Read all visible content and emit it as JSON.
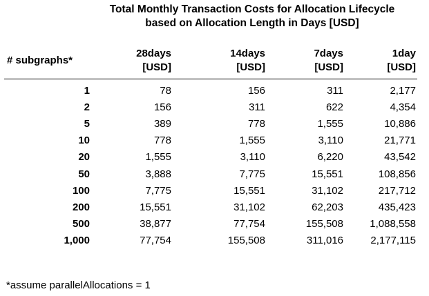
{
  "title": {
    "line1": "Total Monthly Transaction Costs for Allocation Lifecycle",
    "line2": "based on Allocation Length in Days [USD]"
  },
  "table": {
    "corner_header": "# subgraphs*",
    "columns": [
      {
        "line1": "28days",
        "line2": "[USD]"
      },
      {
        "line1": "14days",
        "line2": "[USD]"
      },
      {
        "line1": "7days",
        "line2": "[USD]"
      },
      {
        "line1": "1day",
        "line2": "[USD]"
      }
    ],
    "rows": [
      {
        "subgraphs": "1",
        "values": [
          "78",
          "156",
          "311",
          "2,177"
        ]
      },
      {
        "subgraphs": "2",
        "values": [
          "156",
          "311",
          "622",
          "4,354"
        ]
      },
      {
        "subgraphs": "5",
        "values": [
          "389",
          "778",
          "1,555",
          "10,886"
        ]
      },
      {
        "subgraphs": "10",
        "values": [
          "778",
          "1,555",
          "3,110",
          "21,771"
        ]
      },
      {
        "subgraphs": "20",
        "values": [
          "1,555",
          "3,110",
          "6,220",
          "43,542"
        ]
      },
      {
        "subgraphs": "50",
        "values": [
          "3,888",
          "7,775",
          "15,551",
          "108,856"
        ]
      },
      {
        "subgraphs": "100",
        "values": [
          "7,775",
          "15,551",
          "31,102",
          "217,712"
        ]
      },
      {
        "subgraphs": "200",
        "values": [
          "15,551",
          "31,102",
          "62,203",
          "435,423"
        ]
      },
      {
        "subgraphs": "500",
        "values": [
          "38,877",
          "77,754",
          "155,508",
          "1,088,558"
        ]
      },
      {
        "subgraphs": "1,000",
        "values": [
          "77,754",
          "155,508",
          "311,016",
          "2,177,115"
        ]
      }
    ]
  },
  "footnote": "*assume parallelAllocations = 1"
}
